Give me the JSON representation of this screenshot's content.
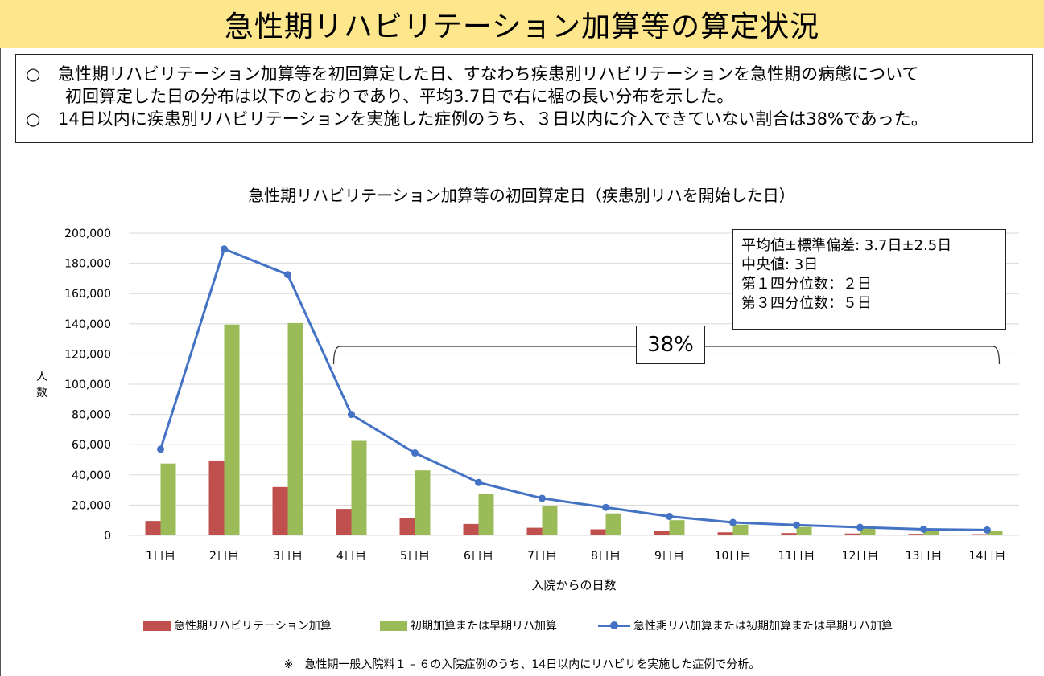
{
  "header": {
    "title": "急性期リハビリテーション加算等の算定状況"
  },
  "summary": {
    "bullet": "○",
    "line1": "急性期リハビリテーション加算等を初回算定した日、すなわち疾患別リハビリテーションを急性期の病態について",
    "line1b": "初回算定した日の分布は以下のとおりであり、平均3.7日で右に裾の長い分布を示した。",
    "line2": "14日以内に疾患別リハビリテーションを実施した症例のうち、３日以内に介入できていない割合は38%であった。"
  },
  "chart_data": {
    "type": "bar",
    "title": "急性期リハビリテーション加算等の初回算定日（疾患別リハを開始した日）",
    "xlabel": "入院からの日数",
    "ylabel": "人数",
    "ylim": [
      0,
      200000
    ],
    "yticks": [
      "0",
      "20,000",
      "40,000",
      "60,000",
      "80,000",
      "100,000",
      "120,000",
      "140,000",
      "160,000",
      "180,000",
      "200,000"
    ],
    "grid": true,
    "legend_position": "bottom",
    "categories": [
      "1日目",
      "2日目",
      "3日目",
      "4日目",
      "5日目",
      "6日目",
      "7日目",
      "8日目",
      "9日目",
      "10日目",
      "11日目",
      "12日目",
      "13日目",
      "14日目"
    ],
    "series": [
      {
        "name": "急性期リハビリテーション加算",
        "kind": "bar",
        "color": "#c0504d",
        "values": [
          9500,
          49500,
          32000,
          17500,
          11500,
          7500,
          5000,
          4000,
          2800,
          2000,
          1500,
          1200,
          1000,
          800
        ]
      },
      {
        "name": "初期加算または早期リハ加算",
        "kind": "bar",
        "color": "#9bbb59",
        "values": [
          47500,
          139500,
          140500,
          62500,
          43000,
          27500,
          19500,
          14500,
          10000,
          7000,
          5500,
          4500,
          3500,
          3000
        ]
      },
      {
        "name": "急性期リハ加算または初期加算または早期リハ加算",
        "kind": "line",
        "color": "#4472c4",
        "values": [
          57000,
          189500,
          172500,
          80000,
          54500,
          35000,
          24500,
          18500,
          12500,
          8500,
          6800,
          5300,
          4000,
          3500
        ]
      }
    ],
    "annotation": {
      "label": "38%",
      "span_from": "4日目",
      "span_to": "14日目"
    },
    "stats": {
      "mean": "平均値±標準偏差: 3.7日±2.5日",
      "median": "中央値:  3日",
      "q1": "第１四分位数：２日",
      "q3": "第３四分位数：５日"
    }
  },
  "footnote": "※　急性期一般入院料１ – ６の入院症例のうち、14日以内にリハビリを実施した症例で分析。"
}
